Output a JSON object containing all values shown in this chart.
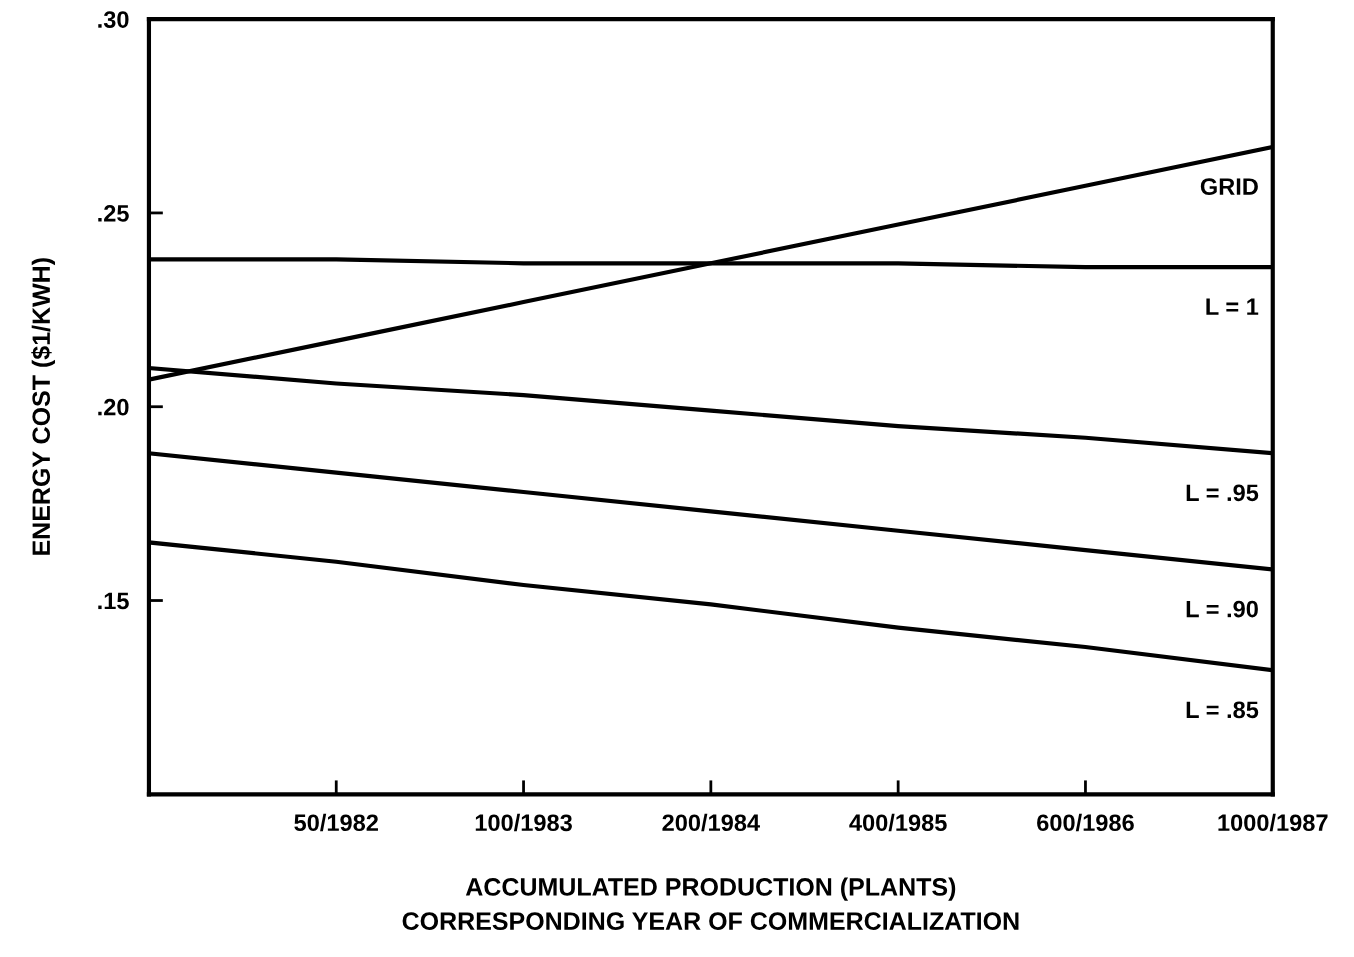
{
  "chart_data": {
    "type": "line",
    "xlabel": "ACCUMULATED PRODUCTION (PLANTS)\nCORRESPONDING YEAR OF COMMERCIALIZATION",
    "ylabel": "ENERGY COST ($1/KWH)",
    "categories": [
      null,
      "50/1982",
      "100/1983",
      "200/1984",
      "400/1985",
      "600/1986",
      "1000/1987"
    ],
    "ylim": [
      0.1,
      0.3
    ],
    "yticks": [
      {
        "value": 0.15,
        "label": ".15"
      },
      {
        "value": 0.2,
        "label": ".20"
      },
      {
        "value": 0.25,
        "label": ".25"
      },
      {
        "value": 0.3,
        "label": ".30"
      }
    ],
    "grid": false,
    "legend": false,
    "marker": "none",
    "line_style": "solid",
    "series": [
      {
        "name": "GRID",
        "color": "#000000",
        "values": [
          0.207,
          0.217,
          0.227,
          0.237,
          0.247,
          0.257,
          0.267
        ]
      },
      {
        "name": "L = 1",
        "color": "#000000",
        "values": [
          0.238,
          0.238,
          0.237,
          0.237,
          0.237,
          0.236,
          0.236
        ]
      },
      {
        "name": "L = .95",
        "color": "#000000",
        "values": [
          0.21,
          0.206,
          0.203,
          0.199,
          0.195,
          0.192,
          0.188
        ]
      },
      {
        "name": "L = .90",
        "color": "#000000",
        "values": [
          0.188,
          0.183,
          0.178,
          0.173,
          0.168,
          0.163,
          0.158
        ]
      },
      {
        "name": "L = .85",
        "color": "#000000",
        "values": [
          0.165,
          0.16,
          0.154,
          0.149,
          0.143,
          0.138,
          0.132
        ]
      }
    ]
  }
}
